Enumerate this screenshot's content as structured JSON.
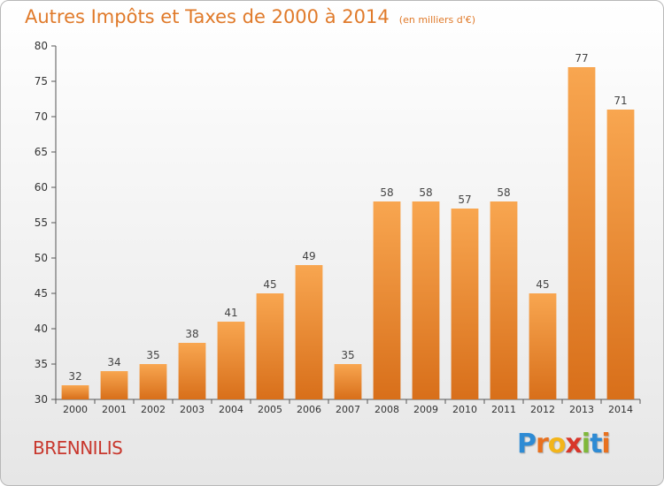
{
  "chart_data": {
    "type": "bar",
    "title": "Autres Impôts et Taxes de 2000 à 2014",
    "subtitle": "(en milliers d'€)",
    "categories": [
      "2000",
      "2001",
      "2002",
      "2003",
      "2004",
      "2005",
      "2006",
      "2007",
      "2008",
      "2009",
      "2010",
      "2011",
      "2012",
      "2013",
      "2014"
    ],
    "values": [
      32,
      34,
      35,
      38,
      41,
      45,
      49,
      35,
      58,
      58,
      57,
      58,
      45,
      77,
      71
    ],
    "ylim": [
      30,
      80
    ],
    "yticks": [
      30,
      35,
      40,
      45,
      50,
      55,
      60,
      65,
      70,
      75,
      80
    ],
    "grid": false,
    "bar_color": "#f0922f"
  },
  "footer": {
    "town": "BRENNILIS",
    "logo_letters": [
      {
        "ch": "P",
        "color": "#2e8bd4"
      },
      {
        "ch": "r",
        "color": "#e8711f"
      },
      {
        "ch": "o",
        "color": "#f3b51a"
      },
      {
        "ch": "x",
        "color": "#d8362a"
      },
      {
        "ch": "i",
        "color": "#7fb83a"
      },
      {
        "ch": "t",
        "color": "#2e8bd4"
      },
      {
        "ch": "i",
        "color": "#e8711f"
      }
    ]
  }
}
